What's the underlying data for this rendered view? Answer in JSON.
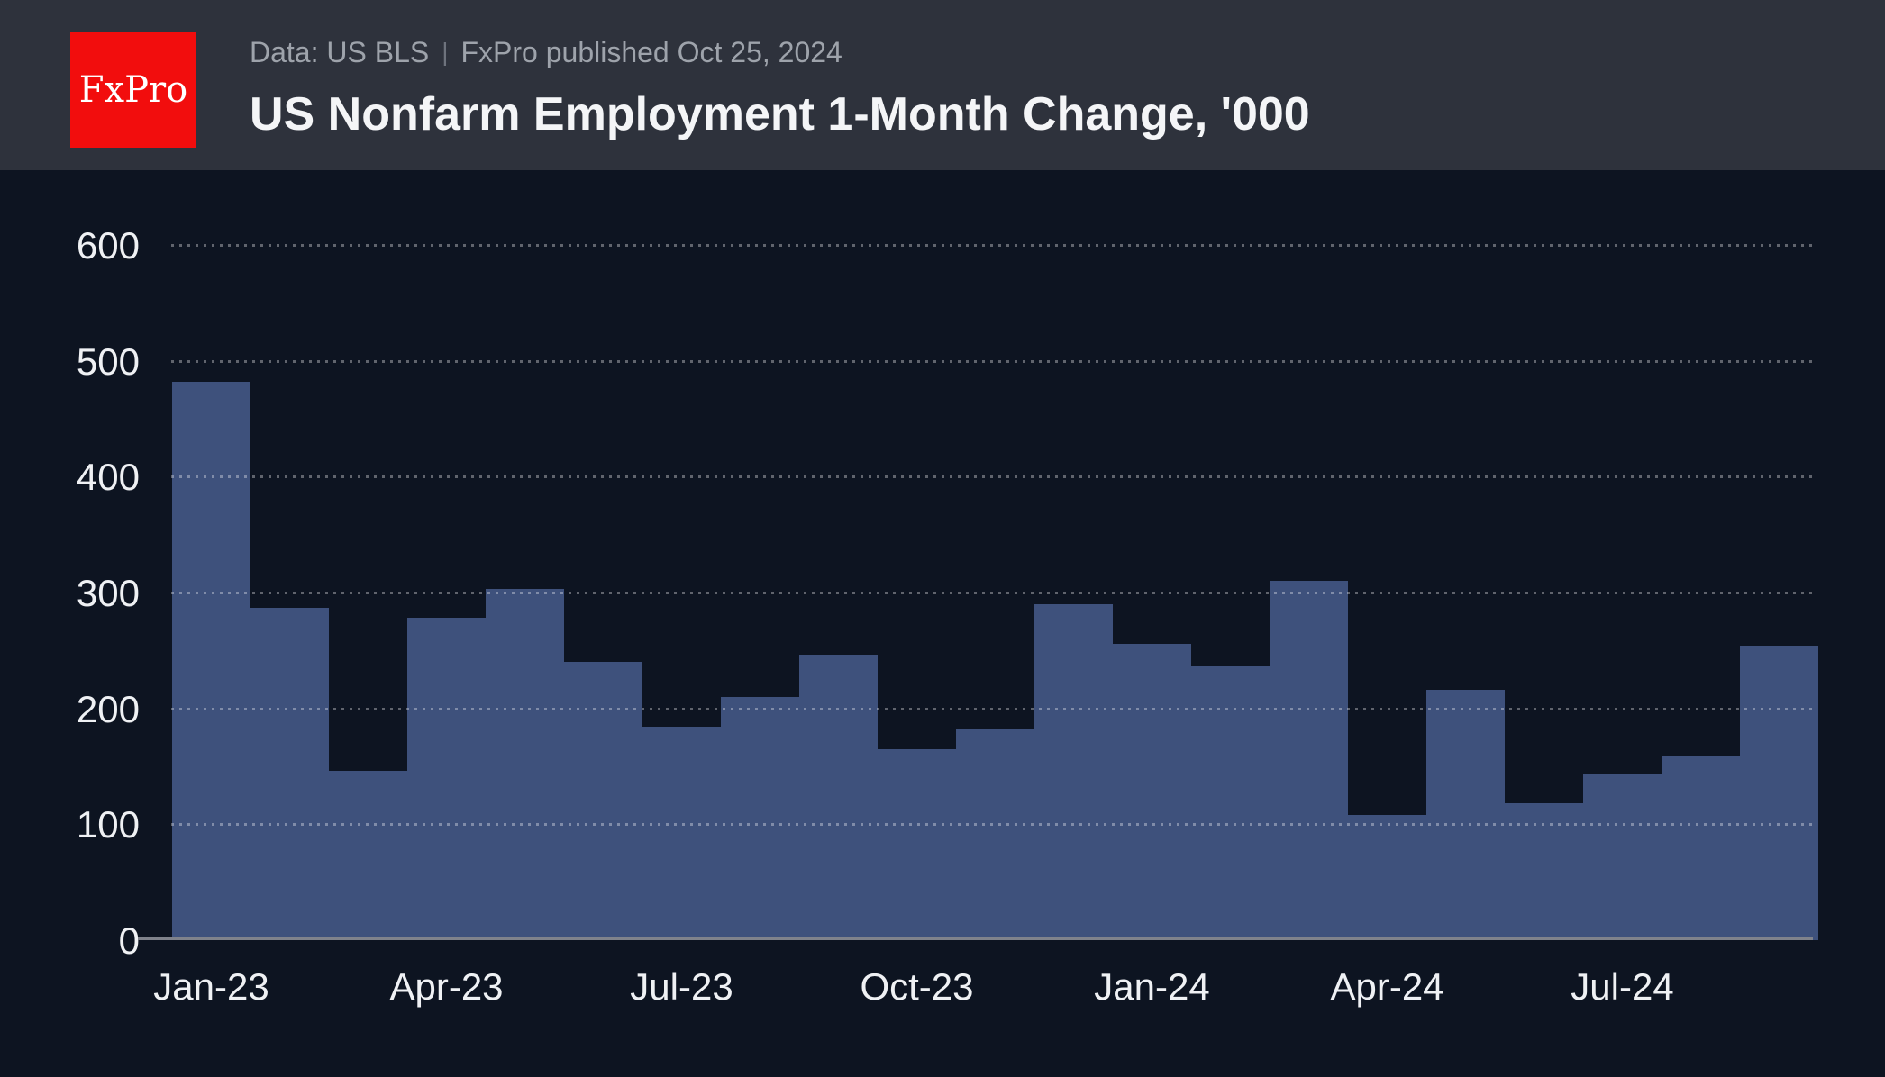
{
  "header": {
    "logo_text": "FxPro",
    "subtitle_left": "Data: US BLS",
    "subtitle_separator": "|",
    "subtitle_right": "FxPro published Oct 25, 2024",
    "title": "US Nonfarm Employment 1-Month Change, '000"
  },
  "colors": {
    "header_bg": "#2E323C",
    "logo_bg": "#F20D0D",
    "logo_text": "#FFFFFF",
    "subtitle_text": "#9EA3AB",
    "title_text": "#F4F5F7",
    "chart_bg": "#0D1421",
    "bar_fill": "#3E517C",
    "axis_line": "#7F828B",
    "tick_label": "#EFF1F4"
  },
  "chart_data": {
    "type": "bar",
    "title": "US Nonfarm Employment 1-Month Change, '000",
    "xlabel": "",
    "ylabel": "",
    "categories": [
      "Jan-23",
      "Feb-23",
      "Mar-23",
      "Apr-23",
      "May-23",
      "Jun-23",
      "Jul-23",
      "Aug-23",
      "Sep-23",
      "Oct-23",
      "Nov-23",
      "Dec-23",
      "Jan-24",
      "Feb-24",
      "Mar-24",
      "Apr-24",
      "May-24",
      "Jun-24",
      "Jul-24",
      "Aug-24",
      "Sep-24"
    ],
    "values": [
      482,
      287,
      146,
      278,
      303,
      240,
      184,
      210,
      246,
      165,
      182,
      290,
      256,
      236,
      310,
      108,
      216,
      118,
      144,
      159,
      254
    ],
    "x_tick_labels": [
      "Jan-23",
      "Apr-23",
      "Jul-23",
      "Oct-23",
      "Jan-24",
      "Apr-24",
      "Jul-24"
    ],
    "x_tick_every": 3,
    "y_ticks": [
      0,
      100,
      200,
      300,
      400,
      500,
      600
    ],
    "ylim": [
      0,
      600
    ],
    "grid": "horizontal-dotted",
    "legend": "none",
    "bars_touching": true
  }
}
